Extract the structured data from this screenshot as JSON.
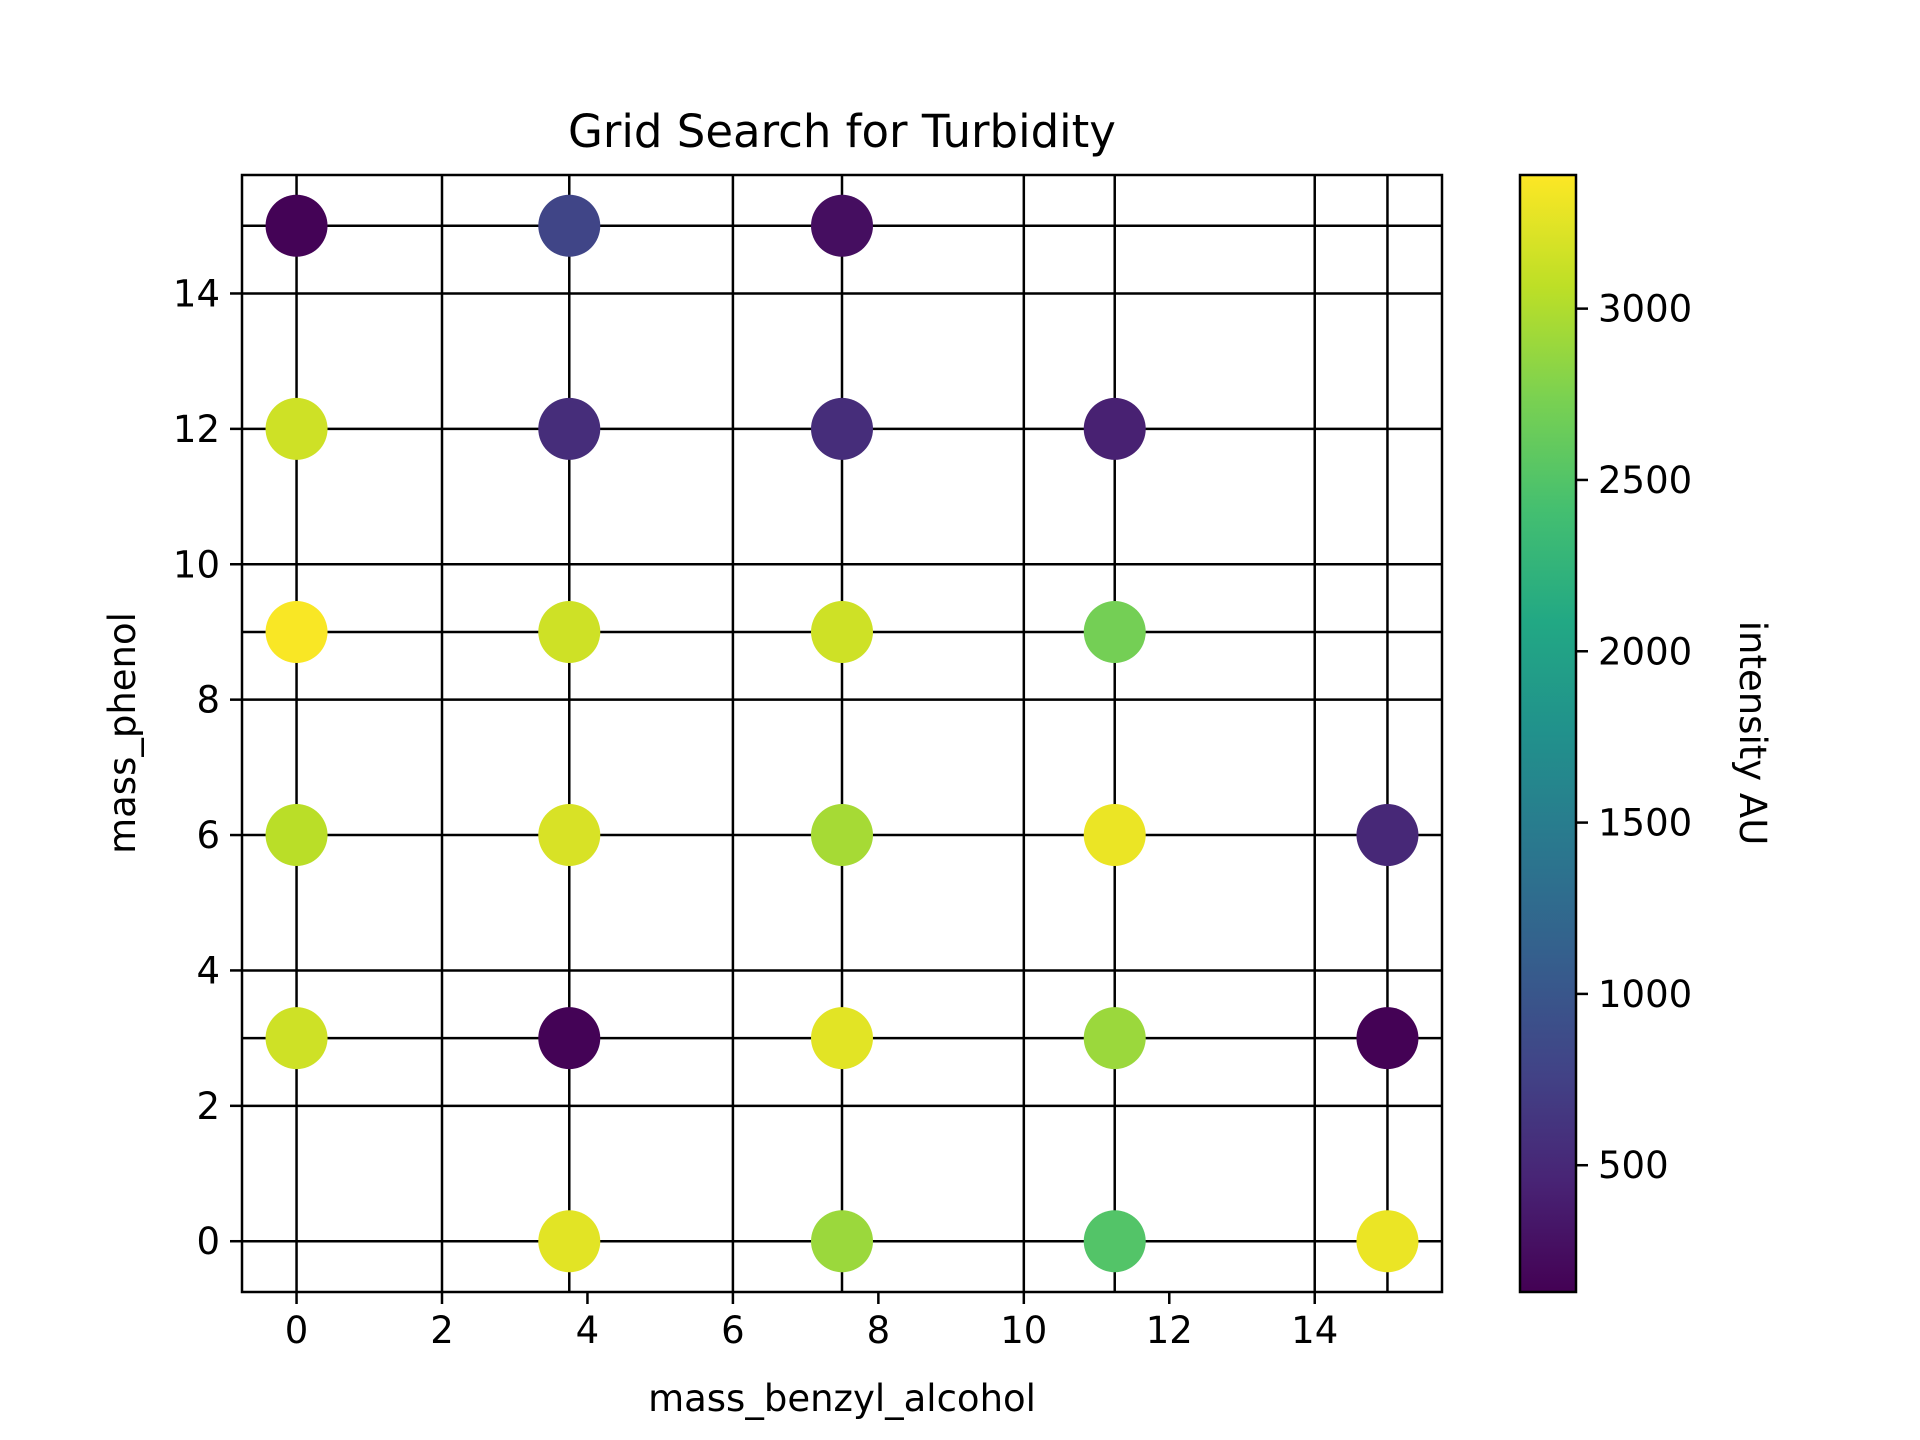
{
  "chart_data": {
    "type": "scatter",
    "title": "Grid Search for Turbidity",
    "xlabel": "mass_benzyl_alcohol",
    "ylabel": "mass_phenol",
    "xlim": [
      -0.75,
      15.75
    ],
    "ylim": [
      -0.75,
      15.75
    ],
    "xticks": [
      0,
      2,
      4,
      6,
      8,
      10,
      12,
      14
    ],
    "yticks": [
      0,
      2,
      4,
      6,
      8,
      10,
      12,
      14
    ],
    "grid_x": [
      0,
      2,
      3.75,
      6,
      7.5,
      10,
      11.25,
      14,
      15
    ],
    "grid_y": [
      0,
      2,
      3,
      4,
      6,
      8,
      9,
      10,
      12,
      14,
      15
    ],
    "grid": true,
    "colorbar": {
      "label": "intensity AU",
      "colormap": "viridis",
      "range": [
        130,
        3390
      ],
      "ticks": [
        500,
        1000,
        1500,
        2000,
        2500,
        3000
      ]
    },
    "points": [
      {
        "x": 0,
        "y": 15,
        "value": 150
      },
      {
        "x": 3.75,
        "y": 15,
        "value": 800
      },
      {
        "x": 7.5,
        "y": 15,
        "value": 250
      },
      {
        "x": 0,
        "y": 12,
        "value": 3150
      },
      {
        "x": 3.75,
        "y": 12,
        "value": 550
      },
      {
        "x": 7.5,
        "y": 12,
        "value": 550
      },
      {
        "x": 11.25,
        "y": 12,
        "value": 430
      },
      {
        "x": 0,
        "y": 9,
        "value": 3370
      },
      {
        "x": 3.75,
        "y": 9,
        "value": 3150
      },
      {
        "x": 7.5,
        "y": 9,
        "value": 3150
      },
      {
        "x": 11.25,
        "y": 9,
        "value": 2700
      },
      {
        "x": 0,
        "y": 6,
        "value": 3050
      },
      {
        "x": 3.75,
        "y": 6,
        "value": 3200
      },
      {
        "x": 7.5,
        "y": 6,
        "value": 2950
      },
      {
        "x": 11.25,
        "y": 6,
        "value": 3300
      },
      {
        "x": 15,
        "y": 6,
        "value": 500
      },
      {
        "x": 0,
        "y": 3,
        "value": 3150
      },
      {
        "x": 3.75,
        "y": 3,
        "value": 150
      },
      {
        "x": 7.5,
        "y": 3,
        "value": 3250
      },
      {
        "x": 11.25,
        "y": 3,
        "value": 2900
      },
      {
        "x": 15,
        "y": 3,
        "value": 140
      },
      {
        "x": 3.75,
        "y": 0,
        "value": 3250
      },
      {
        "x": 7.5,
        "y": 0,
        "value": 2900
      },
      {
        "x": 11.25,
        "y": 0,
        "value": 2500
      },
      {
        "x": 15,
        "y": 0,
        "value": 3300
      }
    ]
  },
  "colors": {
    "grid": "#000000",
    "background": "#ffffff"
  }
}
